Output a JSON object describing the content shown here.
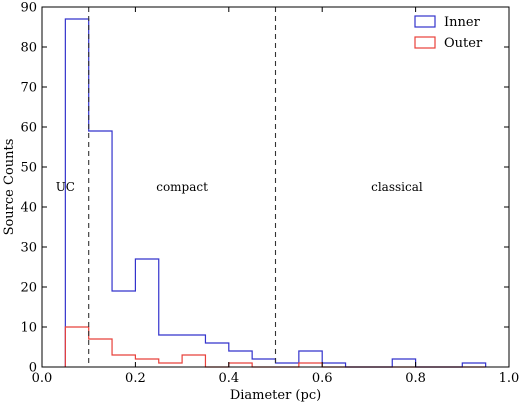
{
  "chart_data": {
    "type": "histogram",
    "xlabel": "Diameter (pc)",
    "ylabel": "Source Counts",
    "xlim": [
      0.0,
      1.0
    ],
    "ylim": [
      0,
      90
    ],
    "xticks": [
      0.0,
      0.2,
      0.4,
      0.6,
      0.8,
      1.0
    ],
    "xtick_labels": [
      "0.0",
      "0.2",
      "0.4",
      "0.6",
      "0.8",
      "1.0"
    ],
    "yticks": [
      0,
      10,
      20,
      30,
      40,
      50,
      60,
      70,
      80,
      90
    ],
    "ytick_labels": [
      "0",
      "10",
      "20",
      "30",
      "40",
      "50",
      "60",
      "70",
      "80",
      "90"
    ],
    "bin_edges": [
      0.05,
      0.1,
      0.15,
      0.2,
      0.25,
      0.3,
      0.35,
      0.4,
      0.45,
      0.5,
      0.55,
      0.6,
      0.65,
      0.7,
      0.75,
      0.8,
      0.85,
      0.9,
      0.95
    ],
    "series": [
      {
        "name": "Inner",
        "color": "#3333cc",
        "counts": [
          87,
          59,
          19,
          27,
          8,
          8,
          6,
          4,
          2,
          1,
          4,
          1,
          0,
          0,
          2,
          0,
          0,
          1
        ]
      },
      {
        "name": "Outer",
        "color": "#e8403a",
        "counts": [
          10,
          7,
          3,
          2,
          1,
          3,
          0,
          1,
          0,
          0,
          1,
          0,
          0,
          0,
          0,
          0,
          0,
          0
        ]
      }
    ],
    "dividers": [
      0.1,
      0.5
    ],
    "regions": [
      {
        "label": "UC",
        "x": 0.05,
        "y": 45
      },
      {
        "label": "compact",
        "x": 0.3,
        "y": 45
      },
      {
        "label": "classical",
        "x": 0.76,
        "y": 45
      }
    ],
    "legend_position": "top-right",
    "grid": false
  }
}
